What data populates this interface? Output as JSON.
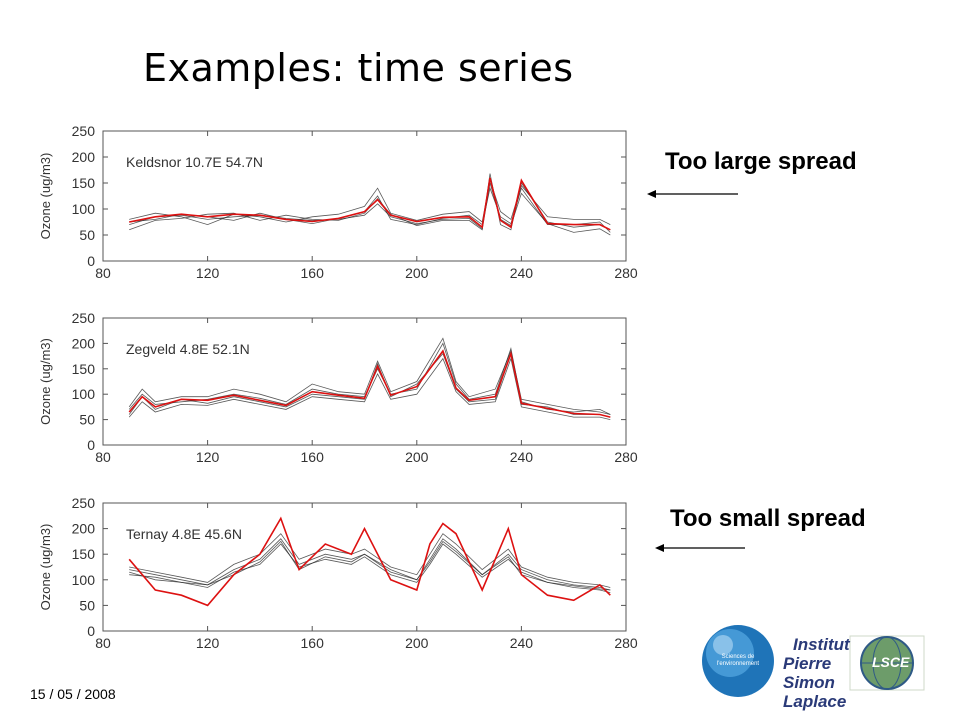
{
  "slide": {
    "title": "Examples: time series",
    "date": "15 / 05 / 2008",
    "annotations": [
      "Too large spread",
      "Too small spread"
    ],
    "logos": {
      "sciences_env": "Sciences de l'environnement",
      "ipsl_lines": [
        "Institut",
        "Pierre",
        "Simon",
        "Laplace"
      ],
      "lsce": "LSCE"
    },
    "colors": {
      "observed": "#dd1111",
      "ensemble": "#222222",
      "arrow": "#000000"
    }
  },
  "chart_data": [
    {
      "type": "line",
      "station": "Keldsnor 10.7E 54.7N",
      "ylabel": "Ozone (ug/m3)",
      "xlim": [
        80,
        280
      ],
      "ylim": [
        0,
        250
      ],
      "xticks": [
        80,
        120,
        160,
        200,
        240,
        280
      ],
      "yticks": [
        0,
        50,
        100,
        150,
        200,
        250
      ],
      "x": [
        90,
        100,
        110,
        120,
        130,
        140,
        150,
        160,
        170,
        180,
        185,
        190,
        200,
        210,
        220,
        225,
        228,
        232,
        236,
        240,
        250,
        260,
        270,
        274
      ],
      "series": [
        {
          "values": [
            70,
            85,
            88,
            80,
            85,
            88,
            82,
            78,
            80,
            88,
            110,
            85,
            72,
            80,
            82,
            62,
            168,
            70,
            60,
            150,
            75,
            65,
            70,
            60
          ]
        },
        {
          "values": [
            75,
            80,
            90,
            85,
            78,
            92,
            80,
            72,
            82,
            95,
            125,
            80,
            70,
            82,
            88,
            70,
            140,
            85,
            72,
            140,
            70,
            70,
            75,
            55
          ]
        },
        {
          "values": [
            60,
            78,
            82,
            90,
            92,
            78,
            88,
            80,
            78,
            92,
            120,
            90,
            68,
            78,
            78,
            60,
            150,
            80,
            68,
            130,
            72,
            55,
            62,
            50
          ]
        },
        {
          "values": [
            80,
            92,
            85,
            70,
            90,
            85,
            75,
            85,
            90,
            105,
            140,
            92,
            78,
            90,
            95,
            75,
            155,
            95,
            80,
            145,
            85,
            80,
            80,
            70
          ]
        }
      ],
      "observed": [
        75,
        85,
        90,
        85,
        90,
        88,
        80,
        76,
        82,
        95,
        118,
        88,
        76,
        84,
        85,
        65,
        160,
        78,
        65,
        155,
        72,
        70,
        70,
        60
      ]
    },
    {
      "type": "line",
      "station": "Zegveld 4.8E 52.1N",
      "ylabel": "Ozone (ug/m3)",
      "xlim": [
        80,
        280
      ],
      "ylim": [
        0,
        250
      ],
      "xticks": [
        80,
        120,
        160,
        200,
        240,
        280
      ],
      "yticks": [
        0,
        50,
        100,
        150,
        200,
        250
      ],
      "x": [
        90,
        95,
        100,
        110,
        120,
        130,
        140,
        150,
        160,
        170,
        180,
        185,
        190,
        200,
        210,
        215,
        220,
        230,
        236,
        240,
        250,
        260,
        270,
        274
      ],
      "series": [
        {
          "values": [
            60,
            95,
            70,
            90,
            82,
            95,
            85,
            75,
            100,
            95,
            90,
            160,
            95,
            120,
            180,
            110,
            85,
            90,
            180,
            80,
            75,
            60,
            60,
            55
          ]
        },
        {
          "values": [
            70,
            100,
            80,
            85,
            90,
            100,
            92,
            80,
            110,
            100,
            95,
            150,
            100,
            110,
            200,
            120,
            90,
            100,
            190,
            85,
            70,
            65,
            70,
            60
          ]
        },
        {
          "values": [
            55,
            85,
            65,
            80,
            78,
            90,
            80,
            70,
            95,
            90,
            85,
            140,
            90,
            100,
            170,
            105,
            80,
            85,
            170,
            75,
            65,
            55,
            55,
            50
          ]
        },
        {
          "values": [
            75,
            110,
            85,
            95,
            95,
            110,
            100,
            85,
            120,
            105,
            100,
            165,
            105,
            125,
            210,
            125,
            95,
            110,
            185,
            90,
            80,
            70,
            65,
            60
          ]
        }
      ],
      "observed": [
        65,
        95,
        75,
        90,
        88,
        98,
        88,
        78,
        105,
        98,
        92,
        155,
        98,
        115,
        185,
        112,
        88,
        95,
        180,
        82,
        72,
        62,
        60,
        55
      ]
    },
    {
      "type": "line",
      "station": "Ternay 4.8E 45.6N",
      "ylabel": "Ozone (ug/m3)",
      "xlim": [
        80,
        280
      ],
      "ylim": [
        0,
        250
      ],
      "xticks": [
        80,
        120,
        160,
        200,
        240,
        280
      ],
      "yticks": [
        0,
        50,
        100,
        150,
        200,
        250
      ],
      "x": [
        90,
        100,
        110,
        120,
        130,
        140,
        148,
        155,
        165,
        175,
        180,
        190,
        200,
        205,
        210,
        215,
        225,
        235,
        240,
        250,
        260,
        270,
        274
      ],
      "series": [
        {
          "values": [
            120,
            110,
            100,
            90,
            120,
            140,
            180,
            130,
            150,
            140,
            150,
            120,
            100,
            140,
            180,
            160,
            110,
            150,
            120,
            100,
            90,
            85,
            80
          ]
        },
        {
          "values": [
            110,
            105,
            95,
            85,
            115,
            130,
            170,
            125,
            140,
            130,
            145,
            110,
            95,
            130,
            170,
            150,
            105,
            140,
            115,
            95,
            85,
            80,
            75
          ]
        },
        {
          "values": [
            125,
            115,
            105,
            95,
            130,
            150,
            190,
            140,
            160,
            150,
            160,
            125,
            110,
            150,
            190,
            170,
            120,
            160,
            125,
            105,
            95,
            90,
            85
          ]
        },
        {
          "values": [
            115,
            100,
            95,
            90,
            110,
            135,
            175,
            120,
            145,
            135,
            150,
            115,
            100,
            135,
            175,
            155,
            110,
            145,
            110,
            95,
            88,
            82,
            80
          ]
        }
      ],
      "observed": [
        140,
        80,
        70,
        50,
        110,
        150,
        220,
        120,
        170,
        150,
        200,
        100,
        80,
        170,
        210,
        190,
        80,
        200,
        110,
        70,
        60,
        90,
        70
      ]
    }
  ]
}
